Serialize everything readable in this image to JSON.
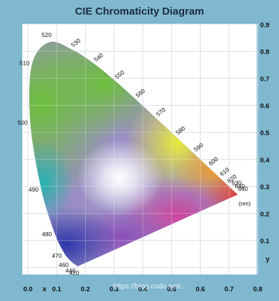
{
  "chart_data": {
    "type": "scatter",
    "title": "CIE Chromaticity Diagram",
    "xlabel": "x",
    "ylabel": "y",
    "xlim": [
      0,
      0.8
    ],
    "ylim": [
      0,
      0.9
    ],
    "x_ticks": [
      "0.0",
      "0.1",
      "0.2",
      "0.3",
      "0.4",
      "0.5",
      "0.6",
      "0.7",
      "0.8"
    ],
    "y_ticks": [
      "0.1",
      "0.2",
      "0.3",
      "0.4",
      "0.5",
      "0.6",
      "0.7",
      "0.8",
      "0.9"
    ],
    "grid": true,
    "unit_label": "(nm)",
    "spectral_locus": [
      {
        "label": "420",
        "x": 0.1741,
        "y": 0.005
      },
      {
        "label": "440",
        "x": 0.1644,
        "y": 0.0109
      },
      {
        "label": "460",
        "x": 0.144,
        "y": 0.0297
      },
      {
        "label": "470",
        "x": 0.1241,
        "y": 0.0578
      },
      {
        "label": "480",
        "x": 0.0913,
        "y": 0.1327
      },
      {
        "label": "490",
        "x": 0.0454,
        "y": 0.295
      },
      {
        "label": "500",
        "x": 0.0082,
        "y": 0.5384
      },
      {
        "label": "510",
        "x": 0.0139,
        "y": 0.7502
      },
      {
        "label": "520",
        "x": 0.0743,
        "y": 0.8338
      },
      {
        "label": "530",
        "x": 0.1547,
        "y": 0.8059
      },
      {
        "label": "540",
        "x": 0.2296,
        "y": 0.7543
      },
      {
        "label": "550",
        "x": 0.3016,
        "y": 0.6923
      },
      {
        "label": "560",
        "x": 0.3731,
        "y": 0.6245
      },
      {
        "label": "570",
        "x": 0.4441,
        "y": 0.5547
      },
      {
        "label": "580",
        "x": 0.5125,
        "y": 0.4866
      },
      {
        "label": "590",
        "x": 0.5752,
        "y": 0.4242
      },
      {
        "label": "600",
        "x": 0.627,
        "y": 0.3725
      },
      {
        "label": "610",
        "x": 0.6658,
        "y": 0.334
      },
      {
        "label": "620",
        "x": 0.6915,
        "y": 0.3083
      },
      {
        "label": "630",
        "x": 0.7079,
        "y": 0.292
      },
      {
        "label": "640",
        "x": 0.719,
        "y": 0.2809
      },
      {
        "label": "660",
        "x": 0.73,
        "y": 0.27
      }
    ]
  },
  "watermark": "https://blog.csdn.net/..."
}
